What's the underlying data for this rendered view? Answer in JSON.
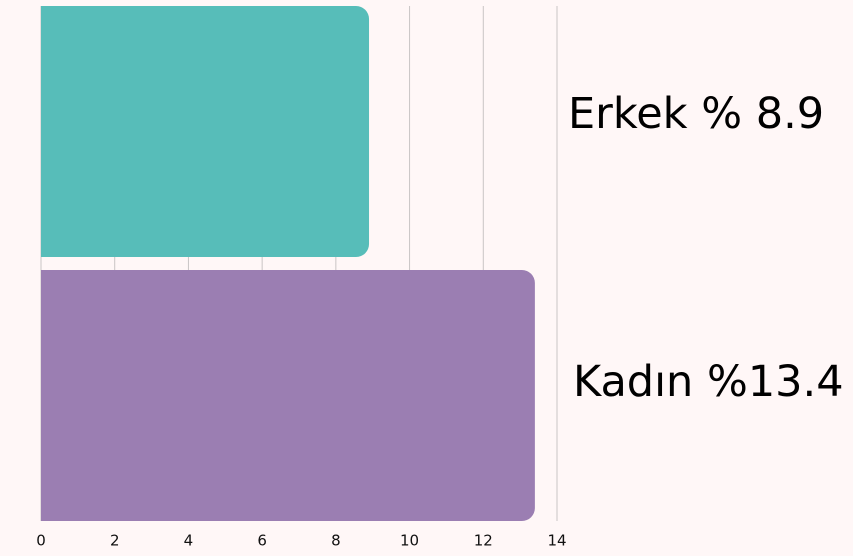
{
  "chart_data": {
    "type": "bar",
    "orientation": "horizontal",
    "values": [
      8.9,
      13.4
    ],
    "value_labels": [
      "Erkek % 8.9",
      "Kadın %13.4"
    ],
    "colors": [
      "#57bdb9",
      "#9b7eb2"
    ],
    "xlim": [
      0,
      14
    ],
    "xticks": [
      0,
      2,
      4,
      6,
      8,
      10,
      12,
      14
    ],
    "grid": true
  }
}
